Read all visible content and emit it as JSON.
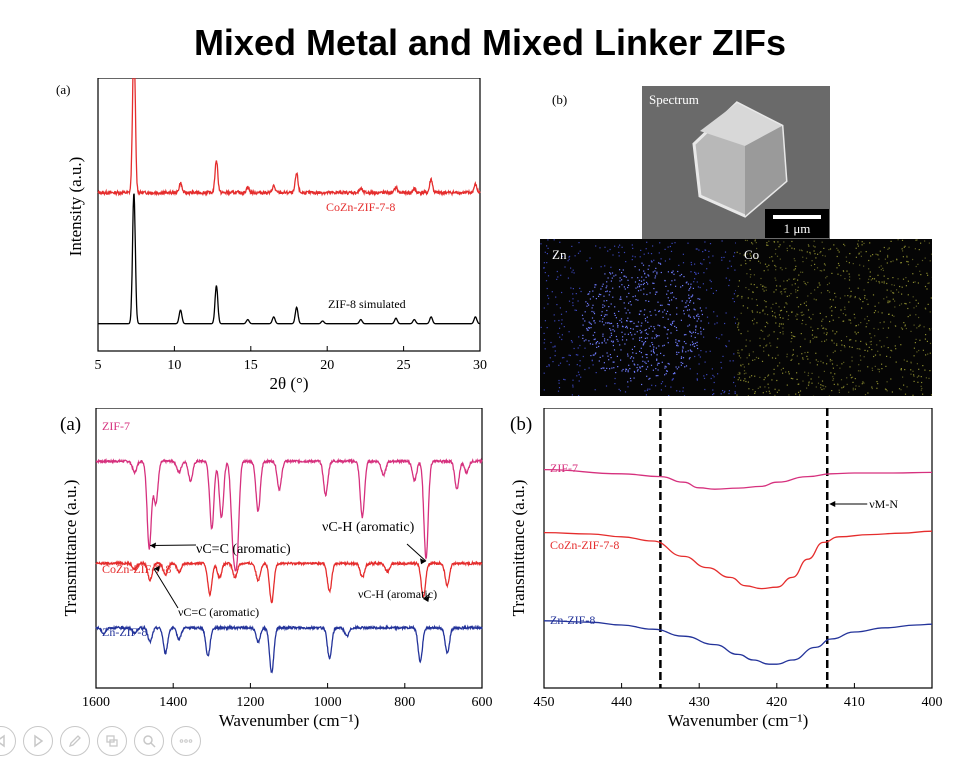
{
  "title": "Mixed Metal and Mixed Linker ZIFs",
  "colors": {
    "red": "#e52d2d",
    "black": "#000000",
    "pink": "#d6317e",
    "blue": "#23339a"
  },
  "sem": {
    "panel_label": "(b)",
    "top_label": "Spectrum",
    "scale_bar": "1 μm",
    "map_left_label": "Zn",
    "map_right_label": "Co"
  },
  "toolbar": [
    "prev-icon",
    "next-icon",
    "pen-icon",
    "slides-icon",
    "zoom-icon",
    "more-icon"
  ],
  "chart_data": [
    {
      "type": "line",
      "panel_label": "(a)",
      "xlabel": "2θ (°)",
      "ylabel": "Intensity (a.u.)",
      "xlim": [
        5,
        30
      ],
      "xticks": [
        5,
        10,
        15,
        20,
        25,
        30
      ],
      "series": [
        {
          "name": "CoZn-ZIF-7-8",
          "color": "#e52d2d",
          "baseline": 0.58,
          "noise": 0.006,
          "peaks": [
            [
              7.35,
              0.55
            ],
            [
              10.4,
              0.035
            ],
            [
              12.75,
              0.12
            ],
            [
              14.8,
              0.02
            ],
            [
              16.5,
              0.025
            ],
            [
              18.0,
              0.07
            ],
            [
              22.2,
              0.015
            ],
            [
              24.5,
              0.02
            ],
            [
              25.7,
              0.015
            ],
            [
              26.8,
              0.05
            ],
            [
              29.7,
              0.03
            ]
          ]
        },
        {
          "name": "ZIF-8 simulated",
          "color": "#000000",
          "baseline": 0.1,
          "noise": 0.0,
          "peaks": [
            [
              7.35,
              0.48
            ],
            [
              10.4,
              0.05
            ],
            [
              12.75,
              0.14
            ],
            [
              14.8,
              0.015
            ],
            [
              16.5,
              0.025
            ],
            [
              18.0,
              0.06
            ],
            [
              19.7,
              0.01
            ],
            [
              22.2,
              0.015
            ],
            [
              24.5,
              0.02
            ],
            [
              25.7,
              0.015
            ],
            [
              26.8,
              0.025
            ],
            [
              29.7,
              0.025
            ]
          ]
        }
      ]
    },
    {
      "type": "line",
      "panel_label": "(a)",
      "xlabel": "Wavenumber (cm⁻¹)",
      "ylabel": "Transmittance (a.u.)",
      "xlim": [
        1600,
        600
      ],
      "xticks": [
        1600,
        1400,
        1200,
        1000,
        800,
        600
      ],
      "annotations": [
        {
          "text": "νC=C (aromatic)",
          "series": "ZIF-7",
          "x": 1460
        },
        {
          "text": "νC-H (aromatic)",
          "series": "ZIF-7",
          "x": 745
        },
        {
          "text": "νC=C (aromatic)",
          "series": "CoZn-ZIF-7-8",
          "x": 1450
        },
        {
          "text": "νC-H (aromatic)",
          "series": "CoZn-ZIF-7-8",
          "x": 752
        }
      ],
      "series": [
        {
          "name": "ZIF-7",
          "color": "#d6317e",
          "baseline": 0.81,
          "dips": [
            [
              1500,
              0.04
            ],
            [
              1462,
              0.31
            ],
            [
              1445,
              0.15
            ],
            [
              1385,
              0.04
            ],
            [
              1355,
              0.07
            ],
            [
              1300,
              0.24
            ],
            [
              1275,
              0.2
            ],
            [
              1245,
              0.26
            ],
            [
              1235,
              0.32
            ],
            [
              1180,
              0.18
            ],
            [
              1125,
              0.1
            ],
            [
              1005,
              0.12
            ],
            [
              910,
              0.2
            ],
            [
              855,
              0.05
            ],
            [
              775,
              0.07
            ],
            [
              745,
              0.35
            ],
            [
              665,
              0.1
            ],
            [
              640,
              0.04
            ]
          ]
        },
        {
          "name": "CoZn-ZIF-7-8",
          "color": "#e52d2d",
          "baseline": 0.445,
          "dips": [
            [
              1500,
              0.02
            ],
            [
              1460,
              0.06
            ],
            [
              1420,
              0.04
            ],
            [
              1385,
              0.03
            ],
            [
              1305,
              0.11
            ],
            [
              1280,
              0.05
            ],
            [
              1240,
              0.05
            ],
            [
              1180,
              0.06
            ],
            [
              1145,
              0.14
            ],
            [
              995,
              0.1
            ],
            [
              910,
              0.05
            ],
            [
              845,
              0.03
            ],
            [
              752,
              0.12
            ],
            [
              690,
              0.08
            ]
          ]
        },
        {
          "name": "Zn-ZIF-8",
          "color": "#23339a",
          "baseline": 0.215,
          "dips": [
            [
              1580,
              0.02
            ],
            [
              1500,
              0.02
            ],
            [
              1460,
              0.05
            ],
            [
              1420,
              0.09
            ],
            [
              1385,
              0.04
            ],
            [
              1310,
              0.1
            ],
            [
              1180,
              0.05
            ],
            [
              1145,
              0.16
            ],
            [
              995,
              0.11
            ],
            [
              950,
              0.03
            ],
            [
              760,
              0.12
            ],
            [
              690,
              0.09
            ]
          ]
        }
      ]
    },
    {
      "type": "line",
      "panel_label": "(b)",
      "xlabel": "Wavenumber (cm⁻¹)",
      "ylabel": "Transmittance (a.u.)",
      "xlim": [
        450,
        400
      ],
      "xticks": [
        450,
        440,
        430,
        420,
        410,
        400
      ],
      "vlines": [
        435,
        413.5
      ],
      "annotations": [
        {
          "text": "νM-N",
          "x": 413.5
        }
      ],
      "series": [
        {
          "name": "ZIF-7",
          "color": "#d6317e",
          "points": [
            [
              450,
              0.78
            ],
            [
              440,
              0.765
            ],
            [
              435,
              0.755
            ],
            [
              432,
              0.735
            ],
            [
              430,
              0.715
            ],
            [
              428,
              0.71
            ],
            [
              425,
              0.714
            ],
            [
              422,
              0.72
            ],
            [
              420,
              0.735
            ],
            [
              416,
              0.755
            ],
            [
              413,
              0.765
            ],
            [
              410,
              0.768
            ],
            [
              405,
              0.768
            ],
            [
              400,
              0.77
            ]
          ]
        },
        {
          "name": "CoZn-ZIF-7-8",
          "color": "#e52d2d",
          "points": [
            [
              450,
              0.555
            ],
            [
              444,
              0.55
            ],
            [
              440,
              0.54
            ],
            [
              436,
              0.525
            ],
            [
              432,
              0.47
            ],
            [
              429,
              0.43
            ],
            [
              426,
              0.395
            ],
            [
              424,
              0.365
            ],
            [
              422,
              0.355
            ],
            [
              420,
              0.36
            ],
            [
              418,
              0.395
            ],
            [
              416,
              0.46
            ],
            [
              414,
              0.52
            ],
            [
              412,
              0.54
            ],
            [
              408,
              0.548
            ],
            [
              404,
              0.553
            ],
            [
              400,
              0.56
            ]
          ]
        },
        {
          "name": "Zn-ZIF-8",
          "color": "#23339a",
          "points": [
            [
              450,
              0.24
            ],
            [
              444,
              0.235
            ],
            [
              440,
              0.225
            ],
            [
              436,
              0.21
            ],
            [
              432,
              0.185
            ],
            [
              428,
              0.155
            ],
            [
              425,
              0.12
            ],
            [
              423,
              0.1
            ],
            [
              421,
              0.085
            ],
            [
              420,
              0.085
            ],
            [
              418,
              0.1
            ],
            [
              415,
              0.145
            ],
            [
              413,
              0.175
            ],
            [
              410,
              0.2
            ],
            [
              406,
              0.215
            ],
            [
              402,
              0.225
            ],
            [
              400,
              0.228
            ]
          ]
        }
      ]
    }
  ]
}
